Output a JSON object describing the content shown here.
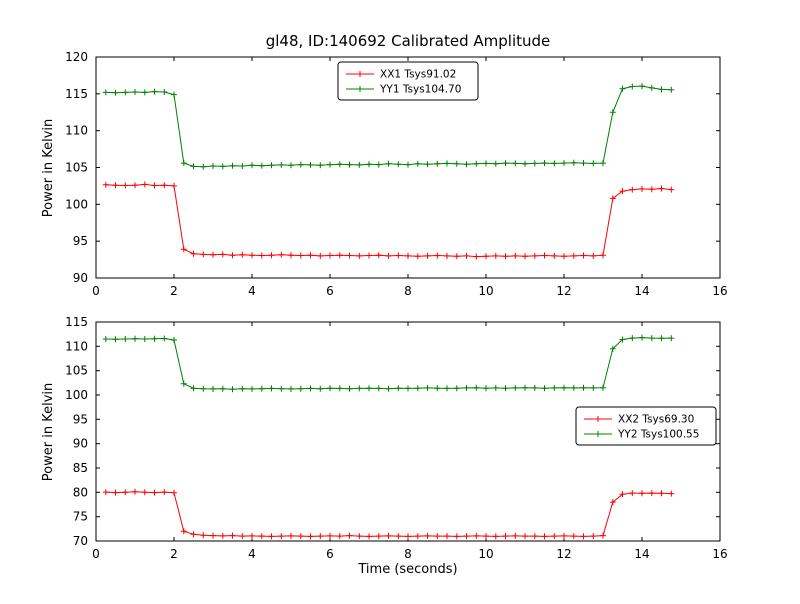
{
  "figure": {
    "background": "#ffffff"
  },
  "chart_data": [
    {
      "type": "line",
      "title": "gl48, ID:140692 Calibrated Amplitude",
      "xlabel": "",
      "ylabel": "Power in Kelvin",
      "xlim": [
        0,
        16
      ],
      "ylim": [
        90,
        120
      ],
      "xticks": [
        0,
        2,
        4,
        6,
        8,
        10,
        12,
        14,
        16
      ],
      "yticks": [
        90,
        95,
        100,
        105,
        110,
        115,
        120
      ],
      "grid": false,
      "legend_position": "top-center",
      "x": [
        0.25,
        0.5,
        0.75,
        1.0,
        1.25,
        1.5,
        1.75,
        2.0,
        2.25,
        2.5,
        2.75,
        3.0,
        3.25,
        3.5,
        3.75,
        4.0,
        4.25,
        4.5,
        4.75,
        5.0,
        5.25,
        5.5,
        5.75,
        6.0,
        6.25,
        6.5,
        6.75,
        7.0,
        7.25,
        7.5,
        7.75,
        8.0,
        8.25,
        8.5,
        8.75,
        9.0,
        9.25,
        9.5,
        9.75,
        10.0,
        10.25,
        10.5,
        10.75,
        11.0,
        11.25,
        11.5,
        11.75,
        12.0,
        12.25,
        12.5,
        12.75,
        13.0,
        13.25,
        13.5,
        13.75,
        14.0,
        14.25,
        14.5,
        14.75
      ],
      "series": [
        {
          "name": "XX1 Tsys91.02",
          "color": "#ff0000",
          "marker": "+",
          "values": [
            102.65,
            102.6,
            102.55,
            102.6,
            102.7,
            102.55,
            102.6,
            102.5,
            93.9,
            93.3,
            93.2,
            93.15,
            93.2,
            93.1,
            93.15,
            93.1,
            93.05,
            93.1,
            93.15,
            93.1,
            93.05,
            93.1,
            93.0,
            93.05,
            93.1,
            93.05,
            93.0,
            93.05,
            93.1,
            93.0,
            93.05,
            93.0,
            92.95,
            93.0,
            93.05,
            93.0,
            92.95,
            93.0,
            92.9,
            92.95,
            93.0,
            92.95,
            93.0,
            92.95,
            93.0,
            93.05,
            93.0,
            92.95,
            93.0,
            93.05,
            93.0,
            93.1,
            100.8,
            101.8,
            102.0,
            102.1,
            102.05,
            102.15,
            102.0
          ]
        },
        {
          "name": "YY1 Tsys104.70",
          "color": "#008000",
          "marker": "+",
          "values": [
            115.2,
            115.15,
            115.2,
            115.25,
            115.2,
            115.3,
            115.25,
            114.9,
            105.6,
            105.15,
            105.1,
            105.2,
            105.15,
            105.25,
            105.2,
            105.3,
            105.25,
            105.3,
            105.35,
            105.3,
            105.4,
            105.35,
            105.3,
            105.4,
            105.45,
            105.4,
            105.35,
            105.45,
            105.4,
            105.5,
            105.45,
            105.4,
            105.5,
            105.45,
            105.5,
            105.55,
            105.5,
            105.45,
            105.5,
            105.55,
            105.5,
            105.6,
            105.55,
            105.5,
            105.55,
            105.6,
            105.55,
            105.6,
            105.65,
            105.6,
            105.55,
            105.6,
            112.5,
            115.7,
            116.0,
            116.05,
            115.8,
            115.6,
            115.55
          ]
        }
      ]
    },
    {
      "type": "line",
      "title": "",
      "xlabel": "Time (seconds)",
      "ylabel": "Power in Kelvin",
      "xlim": [
        0,
        16
      ],
      "ylim": [
        70,
        115
      ],
      "xticks": [
        0,
        2,
        4,
        6,
        8,
        10,
        12,
        14,
        16
      ],
      "yticks": [
        70,
        75,
        80,
        85,
        90,
        95,
        100,
        105,
        110,
        115
      ],
      "grid": false,
      "legend_position": "right-middle",
      "x": [
        0.25,
        0.5,
        0.75,
        1.0,
        1.25,
        1.5,
        1.75,
        2.0,
        2.25,
        2.5,
        2.75,
        3.0,
        3.25,
        3.5,
        3.75,
        4.0,
        4.25,
        4.5,
        4.75,
        5.0,
        5.25,
        5.5,
        5.75,
        6.0,
        6.25,
        6.5,
        6.75,
        7.0,
        7.25,
        7.5,
        7.75,
        8.0,
        8.25,
        8.5,
        8.75,
        9.0,
        9.25,
        9.5,
        9.75,
        10.0,
        10.25,
        10.5,
        10.75,
        11.0,
        11.25,
        11.5,
        11.75,
        12.0,
        12.25,
        12.5,
        12.75,
        13.0,
        13.25,
        13.5,
        13.75,
        14.0,
        14.25,
        14.5,
        14.75
      ],
      "series": [
        {
          "name": "XX2 Tsys69.30",
          "color": "#ff0000",
          "marker": "+",
          "values": [
            80.05,
            79.95,
            80.0,
            80.1,
            80.0,
            79.95,
            80.05,
            79.9,
            72.0,
            71.4,
            71.2,
            71.1,
            71.05,
            71.1,
            71.0,
            71.05,
            71.0,
            70.95,
            71.0,
            71.05,
            71.0,
            70.95,
            71.0,
            71.05,
            71.0,
            71.1,
            71.0,
            70.95,
            71.0,
            71.05,
            71.0,
            70.95,
            71.0,
            71.05,
            71.0,
            71.0,
            70.95,
            71.0,
            71.05,
            71.0,
            70.95,
            71.0,
            71.05,
            71.0,
            71.0,
            70.95,
            71.0,
            71.05,
            71.0,
            70.95,
            71.0,
            71.1,
            78.0,
            79.6,
            79.85,
            79.8,
            79.85,
            79.8,
            79.75
          ]
        },
        {
          "name": "YY2 Tsys100.55",
          "color": "#008000",
          "marker": "+",
          "values": [
            111.5,
            111.45,
            111.5,
            111.55,
            111.5,
            111.55,
            111.6,
            111.3,
            102.3,
            101.4,
            101.3,
            101.25,
            101.3,
            101.2,
            101.3,
            101.25,
            101.3,
            101.35,
            101.3,
            101.25,
            101.3,
            101.35,
            101.3,
            101.4,
            101.35,
            101.3,
            101.35,
            101.4,
            101.35,
            101.3,
            101.4,
            101.35,
            101.4,
            101.45,
            101.4,
            101.35,
            101.4,
            101.45,
            101.5,
            101.4,
            101.45,
            101.4,
            101.45,
            101.5,
            101.45,
            101.4,
            101.45,
            101.5,
            101.45,
            101.5,
            101.45,
            101.5,
            109.5,
            111.4,
            111.7,
            111.8,
            111.7,
            111.65,
            111.7
          ]
        }
      ]
    }
  ]
}
